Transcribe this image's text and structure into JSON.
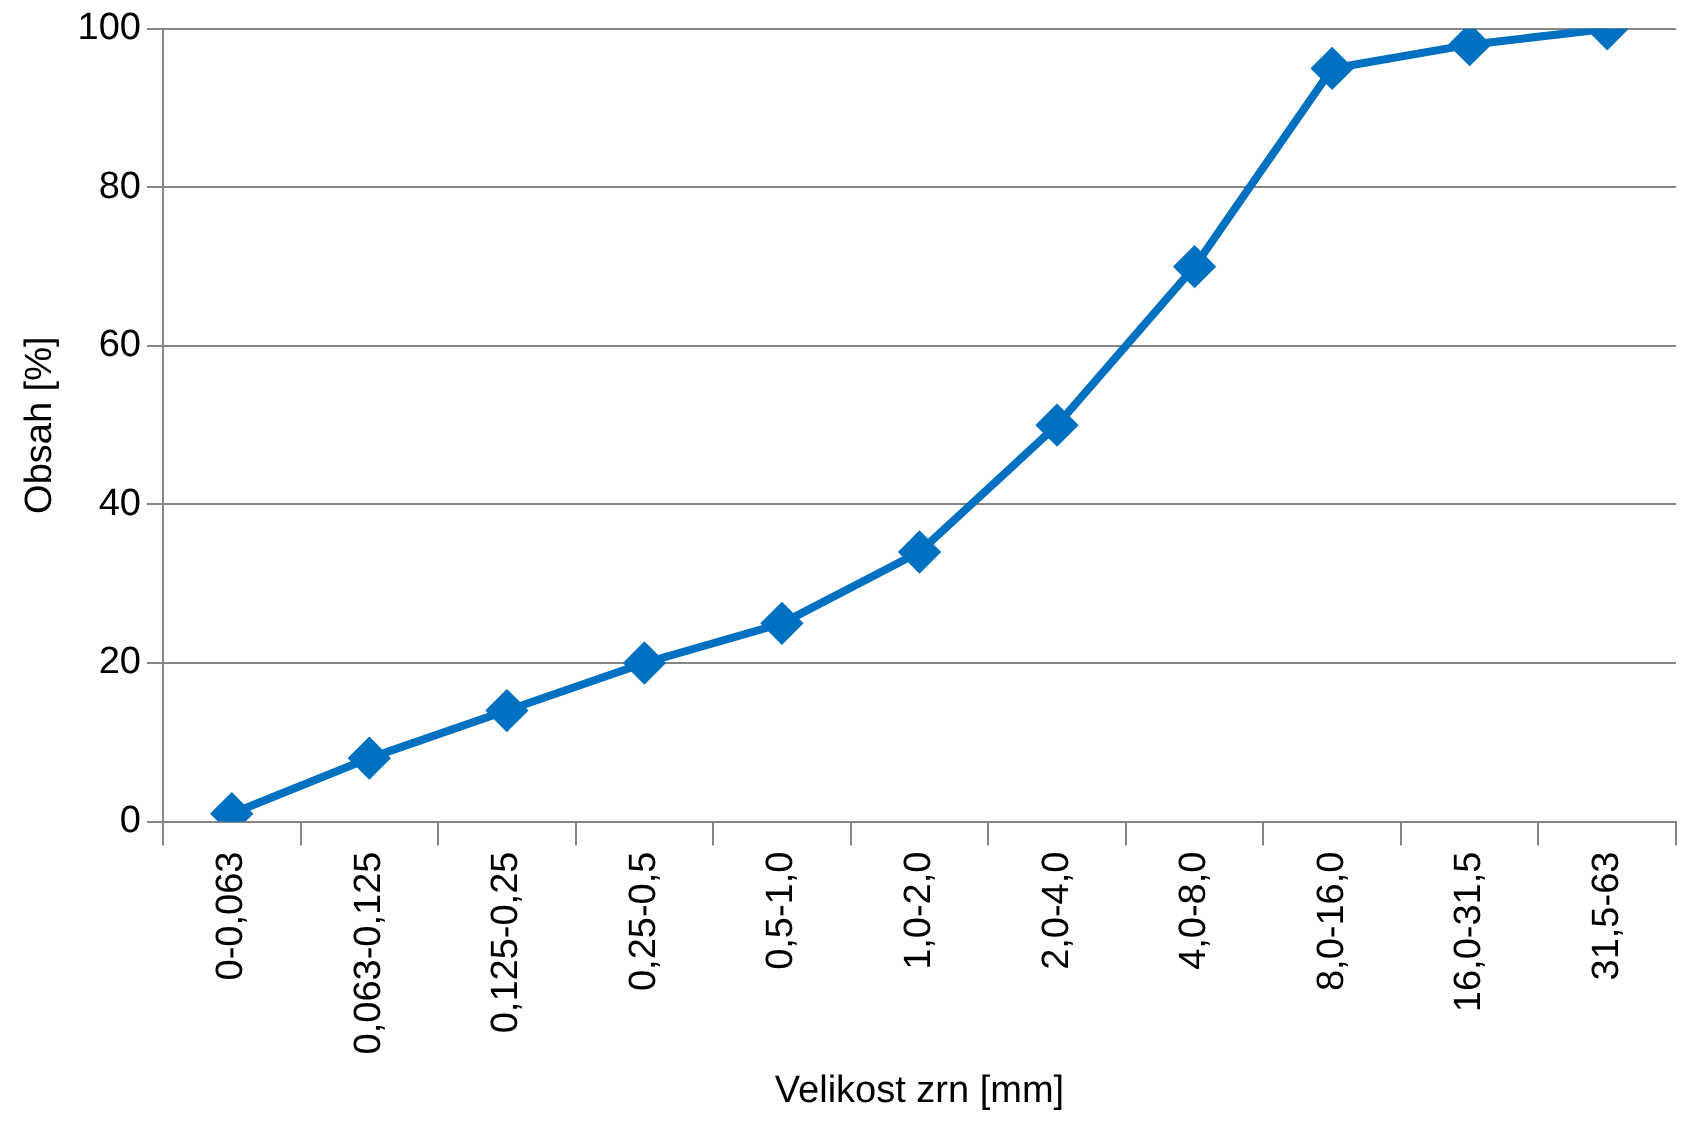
{
  "chart_data": {
    "type": "line",
    "xlabel": "Velikost zrn [mm]",
    "ylabel": "Obsah [%]",
    "categories": [
      "0-0,063",
      "0,063-0,125",
      "0,125-0,25",
      "0,25-0,5",
      "0,5-1,0",
      "1,0-2,0",
      "2,0-4,0",
      "4,0-8,0",
      "8,0-16,0",
      "16,0-31,5",
      "31,5-63"
    ],
    "series": [
      {
        "color": "#0070c0",
        "values": [
          1,
          8,
          14,
          20,
          25,
          34,
          50,
          70,
          95,
          98,
          100
        ]
      }
    ],
    "ylim": [
      0,
      100
    ],
    "yticks": [
      0,
      20,
      40,
      60,
      80,
      100
    ],
    "grid": "y",
    "legend": false,
    "marker": "diamond",
    "line_style": "solid"
  }
}
